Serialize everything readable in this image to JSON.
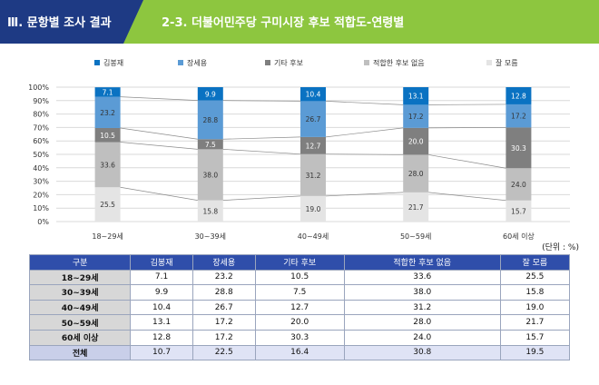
{
  "header": {
    "section": "Ⅲ. 문항별 조사 결과",
    "title": "2-3. 더불어민주당 구미시장 후보 적합도-연령별"
  },
  "unit_label": "(단위 : %)",
  "colors": {
    "header_navy": "#1e3a84",
    "header_green": "#8dc63f",
    "table_header": "#2f4eaa",
    "series": [
      "#0a72c2",
      "#5b9bd5",
      "#7f7f7f",
      "#bfbfbf",
      "#e4e4e4"
    ]
  },
  "chart_data": {
    "type": "bar",
    "stacked": true,
    "categories": [
      "18~29세",
      "30~39세",
      "40~49세",
      "50~59세",
      "60세 이상"
    ],
    "series": [
      {
        "name": "김봉재",
        "values": [
          7.1,
          9.9,
          10.4,
          13.1,
          12.8
        ]
      },
      {
        "name": "장세용",
        "values": [
          23.2,
          28.8,
          26.7,
          17.2,
          17.2
        ]
      },
      {
        "name": "기타 후보",
        "values": [
          10.5,
          7.5,
          12.7,
          20.0,
          30.3
        ]
      },
      {
        "name": "적합한 후보 없음",
        "values": [
          33.6,
          38.0,
          31.2,
          28.0,
          24.0
        ]
      },
      {
        "name": "잘 모름",
        "values": [
          25.5,
          15.8,
          19.0,
          21.7,
          15.7
        ]
      }
    ],
    "y_ticks": [
      "0%",
      "10%",
      "20%",
      "30%",
      "40%",
      "50%",
      "60%",
      "70%",
      "80%",
      "90%",
      "100%"
    ],
    "ylim": [
      0,
      100
    ],
    "grid": true,
    "legend_position": "top"
  },
  "table": {
    "headers": [
      "구분",
      "김봉재",
      "장세용",
      "기타 후보",
      "적합한 후보 없음",
      "잘 모름"
    ],
    "rows": [
      [
        "18~29세",
        "7.1",
        "23.2",
        "10.5",
        "33.6",
        "25.5"
      ],
      [
        "30~39세",
        "9.9",
        "28.8",
        "7.5",
        "38.0",
        "15.8"
      ],
      [
        "40~49세",
        "10.4",
        "26.7",
        "12.7",
        "31.2",
        "19.0"
      ],
      [
        "50~59세",
        "13.1",
        "17.2",
        "20.0",
        "28.0",
        "21.7"
      ],
      [
        "60세 이상",
        "12.8",
        "17.2",
        "30.3",
        "24.0",
        "15.7"
      ],
      [
        "전체",
        "10.7",
        "22.5",
        "16.4",
        "30.8",
        "19.5"
      ]
    ]
  }
}
